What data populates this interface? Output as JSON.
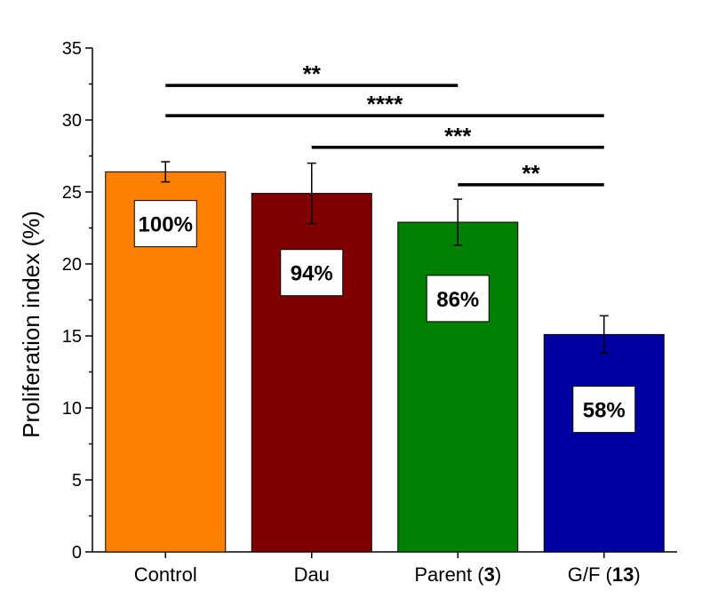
{
  "chart_data": {
    "type": "bar",
    "title": "",
    "xlabel": "",
    "ylabel": "Proliferation index (%)",
    "ylim": [
      0,
      35
    ],
    "yticks": [
      0,
      5,
      10,
      15,
      20,
      25,
      30,
      35
    ],
    "grid": false,
    "categories": [
      {
        "name": "Control",
        "bold": ""
      },
      {
        "name": "Dau",
        "bold": ""
      },
      {
        "name": "Parent (",
        "bold": "3",
        "suffix": ")"
      },
      {
        "name": "G/F (",
        "bold": "13",
        "suffix": ")"
      }
    ],
    "values": [
      26.4,
      24.9,
      22.9,
      15.1
    ],
    "errors": [
      0.7,
      2.1,
      1.6,
      1.3
    ],
    "colors": [
      "#ff7f00",
      "#800000",
      "#008000",
      "#0000a0"
    ],
    "percent_labels": [
      "100%",
      "94%",
      "86%",
      "58%"
    ],
    "percent_label_y": [
      22.8,
      19.4,
      17.6,
      9.9
    ],
    "significance": [
      {
        "from": 0,
        "to": 2,
        "y": 32.4,
        "label": "**"
      },
      {
        "from": 0,
        "to": 3,
        "y": 30.3,
        "label": "****"
      },
      {
        "from": 1,
        "to": 3,
        "y": 28.1,
        "label": "***"
      },
      {
        "from": 2,
        "to": 3,
        "y": 25.5,
        "label": "**"
      }
    ]
  }
}
